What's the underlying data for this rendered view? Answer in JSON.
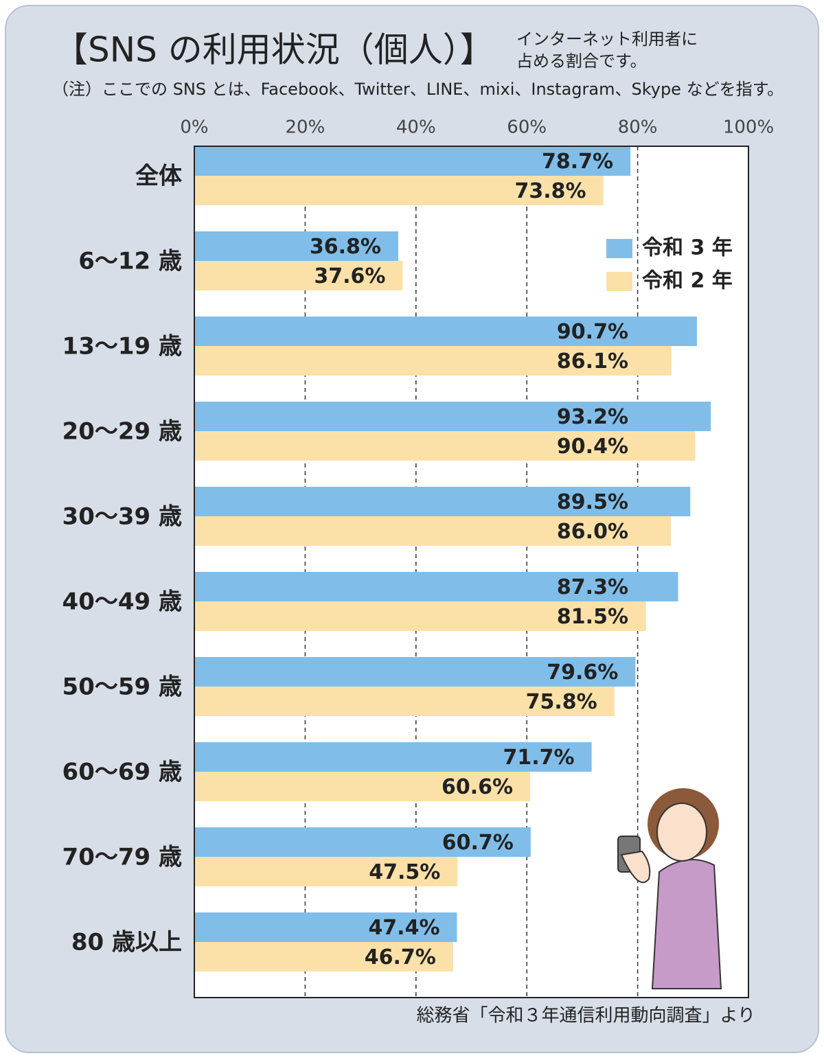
{
  "chart_data": {
    "type": "bar",
    "orientation": "horizontal",
    "title": "【SNS の利用状況（個人）】",
    "subtitle": [
      "インターネット利用者に",
      "占める割合です。"
    ],
    "note": "（注）ここでの SNS とは、Facebook、Twitter、LINE、mixi、Instagram、Skype などを指す。",
    "source": "総務省「令和３年通信利用動向調査」より",
    "categories": [
      "全体",
      "6～12 歳",
      "13～19 歳",
      "20～29 歳",
      "30～39 歳",
      "40～49 歳",
      "50～59 歳",
      "60～69 歳",
      "70～79 歳",
      "80 歳以上"
    ],
    "series": [
      {
        "name": "令和 3 年",
        "color": "#80bee9",
        "values": [
          78.7,
          36.8,
          90.7,
          93.2,
          89.5,
          87.3,
          79.6,
          71.7,
          60.7,
          47.4
        ],
        "value_labels": [
          "78.7%",
          "36.8%",
          "90.7%",
          "93.2%",
          "89.5%",
          "87.3%",
          "79.6%",
          "71.7%",
          "60.7%",
          "47.4%"
        ]
      },
      {
        "name": "令和 2 年",
        "color": "#fbe1a8",
        "values": [
          73.8,
          37.6,
          86.1,
          90.4,
          86.0,
          81.5,
          75.8,
          60.6,
          47.5,
          46.7
        ],
        "value_labels": [
          "73.8%",
          "37.6%",
          "86.1%",
          "90.4%",
          "86.0%",
          "81.5%",
          "75.8%",
          "60.6%",
          "47.5%",
          "46.7%"
        ]
      }
    ],
    "xlim": [
      0,
      100
    ],
    "xticks": [
      {
        "value": 0,
        "label": "0%"
      },
      {
        "value": 20,
        "label": "20%"
      },
      {
        "value": 40,
        "label": "40%"
      },
      {
        "value": 60,
        "label": "60%"
      },
      {
        "value": 80,
        "label": "80%"
      },
      {
        "value": 100,
        "label": "100%"
      }
    ],
    "grid": true,
    "legend": "upper right"
  }
}
